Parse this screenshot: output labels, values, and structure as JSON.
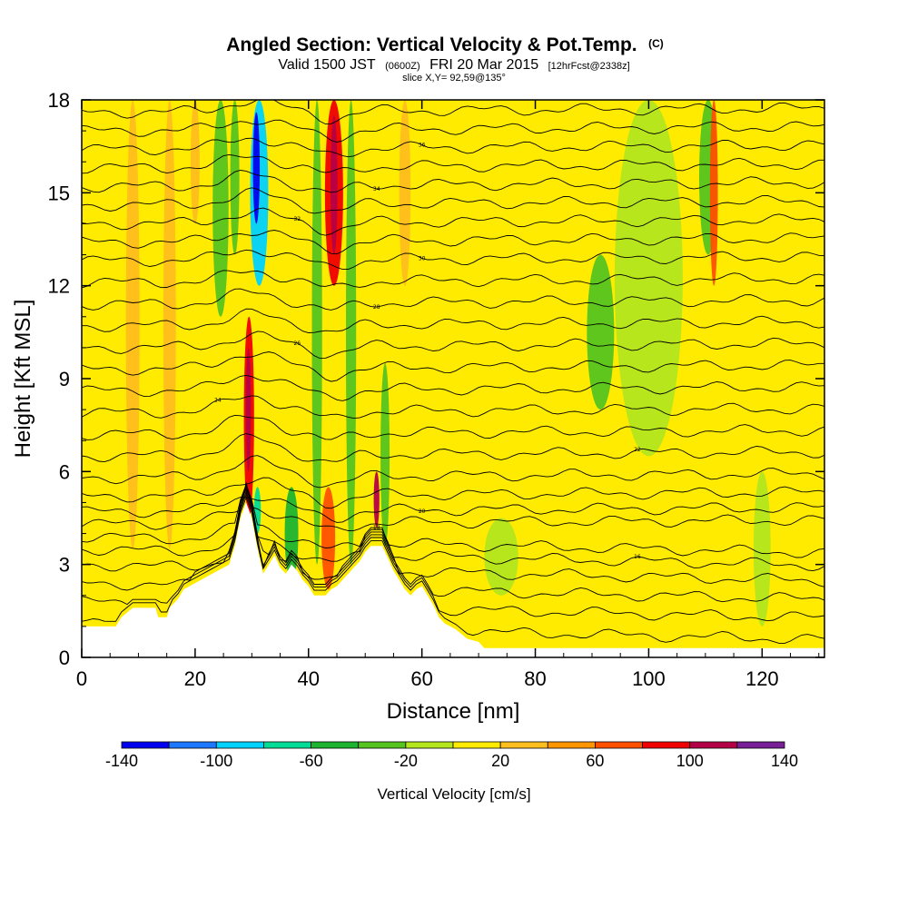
{
  "chart_data": {
    "type": "heatmap",
    "title": "Angled Section: Vertical Velocity & Pot.Temp.",
    "title_unit": "(C)",
    "subtitle_parts": [
      "Valid 1500 JST",
      "(0600Z)",
      "FRI 20 Mar 2015",
      "[12hrFcst@2338z]"
    ],
    "slice_label": "slice X,Y= 92,59@135°",
    "xlabel": "Distance [nm]",
    "ylabel": "Height [Kft MSL]",
    "xlim": [
      0,
      131
    ],
    "ylim": [
      0,
      18
    ],
    "x_ticks": [
      0,
      20,
      40,
      60,
      80,
      100,
      120
    ],
    "y_ticks": [
      0,
      3,
      6,
      9,
      12,
      15,
      18
    ],
    "colorbar": {
      "title": "Vertical Velocity [cm/s]",
      "bounds": [
        -140,
        -120,
        -100,
        -80,
        -60,
        -40,
        -20,
        0,
        20,
        40,
        60,
        80,
        100,
        120,
        140
      ],
      "tick_values": [
        -140,
        -100,
        -60,
        -20,
        20,
        60,
        100,
        140
      ],
      "colors": [
        "#0000ee",
        "#1e78ff",
        "#00d2ff",
        "#00dc96",
        "#1eb432",
        "#55c41e",
        "#b4e61e",
        "#ffeb00",
        "#ffbe1e",
        "#ff9600",
        "#ff5000",
        "#f00000",
        "#b40046",
        "#781e96"
      ]
    },
    "background_class": 0,
    "field_bands": [
      {
        "x": 9.0,
        "hw": 1.2,
        "y0": 3.5,
        "y1": 18,
        "cls": 1
      },
      {
        "x": 15.5,
        "hw": 1.1,
        "y0": 3.5,
        "y1": 18,
        "cls": 1
      },
      {
        "x": 20.0,
        "hw": 0.8,
        "y0": 14,
        "y1": 18,
        "cls": 1
      },
      {
        "x": 24.5,
        "hw": 1.4,
        "y0": 11,
        "y1": 18,
        "cls": -2
      },
      {
        "x": 27.0,
        "hw": 0.8,
        "y0": 13,
        "y1": 18,
        "cls": -2
      },
      {
        "x": 31.3,
        "hw": 1.6,
        "y0": 12,
        "y1": 18,
        "cls": -5
      },
      {
        "x": 30.8,
        "hw": 0.6,
        "y0": 14,
        "y1": 17.6,
        "cls": -7
      },
      {
        "x": 29.5,
        "hw": 0.9,
        "y0": 4.5,
        "y1": 11,
        "cls": 4
      },
      {
        "x": 29.4,
        "hw": 0.45,
        "y0": 6,
        "y1": 10,
        "cls": 5
      },
      {
        "x": 31.0,
        "hw": 0.6,
        "y0": 4.0,
        "y1": 5.5,
        "cls": -4
      },
      {
        "x": 44.5,
        "hw": 1.6,
        "y0": 12,
        "y1": 18,
        "cls": 4
      },
      {
        "x": 44.5,
        "hw": 0.6,
        "y0": 13,
        "y1": 17.5,
        "cls": 5
      },
      {
        "x": 43.5,
        "hw": 1.2,
        "y0": 2.2,
        "y1": 5.5,
        "cls": 3
      },
      {
        "x": 41.5,
        "hw": 0.9,
        "y0": 3,
        "y1": 18,
        "cls": -2
      },
      {
        "x": 47.5,
        "hw": 0.9,
        "y0": 3,
        "y1": 18,
        "cls": -2
      },
      {
        "x": 52.0,
        "hw": 0.5,
        "y0": 4.2,
        "y1": 6.0,
        "cls": 5
      },
      {
        "x": 53.5,
        "hw": 0.8,
        "y0": 3.6,
        "y1": 9.5,
        "cls": -2
      },
      {
        "x": 57.0,
        "hw": 1.0,
        "y0": 12,
        "y1": 18,
        "cls": 1
      },
      {
        "x": 37.0,
        "hw": 1.2,
        "y0": 2.5,
        "y1": 5.5,
        "cls": -3
      },
      {
        "x": 91.5,
        "hw": 2.4,
        "y0": 8,
        "y1": 13,
        "cls": -2
      },
      {
        "x": 110.5,
        "hw": 1.6,
        "y0": 13,
        "y1": 18,
        "cls": -2
      },
      {
        "x": 111.5,
        "hw": 0.7,
        "y0": 12,
        "y1": 18,
        "cls": 3
      },
      {
        "x": 120.0,
        "hw": 1.5,
        "y0": 1,
        "y1": 6,
        "cls": -1
      },
      {
        "x": 100.0,
        "hw": 6.0,
        "y0": 6.5,
        "y1": 18,
        "cls": -1
      },
      {
        "x": 74.0,
        "hw": 3.0,
        "y0": 2,
        "y1": 4.5,
        "cls": -1
      }
    ],
    "potential_temperature_contours": [
      {
        "y_left": 1.1,
        "label": ""
      },
      {
        "y_left": 1.8,
        "label": ""
      },
      {
        "y_left": 2.4,
        "label": ""
      },
      {
        "y_left": 3.0,
        "label": ""
      },
      {
        "y_left": 3.5,
        "label": "16"
      },
      {
        "y_left": 3.9,
        "label": "18"
      },
      {
        "y_left": 4.3,
        "label": ""
      },
      {
        "y_left": 4.7,
        "label": "20"
      },
      {
        "y_left": 5.2,
        "label": ""
      },
      {
        "y_left": 5.8,
        "label": ""
      },
      {
        "y_left": 6.5,
        "label": "22"
      },
      {
        "y_left": 7.2,
        "label": ""
      },
      {
        "y_left": 7.9,
        "label": "24"
      },
      {
        "y_left": 8.6,
        "label": ""
      },
      {
        "y_left": 9.3,
        "label": ""
      },
      {
        "y_left": 10.0,
        "label": "26"
      },
      {
        "y_left": 10.7,
        "label": ""
      },
      {
        "y_left": 11.4,
        "label": "28"
      },
      {
        "y_left": 12.1,
        "label": ""
      },
      {
        "y_left": 12.8,
        "label": "30"
      },
      {
        "y_left": 13.4,
        "label": ""
      },
      {
        "y_left": 14.0,
        "label": "32"
      },
      {
        "y_left": 14.6,
        "label": ""
      },
      {
        "y_left": 15.2,
        "label": "34"
      },
      {
        "y_left": 15.8,
        "label": ""
      },
      {
        "y_left": 16.4,
        "label": "36"
      },
      {
        "y_left": 17.0,
        "label": ""
      },
      {
        "y_left": 17.6,
        "label": ""
      }
    ],
    "terrain_heights_kft": [
      [
        0,
        1.0
      ],
      [
        6,
        1.0
      ],
      [
        7,
        1.3
      ],
      [
        9,
        1.6
      ],
      [
        13,
        1.6
      ],
      [
        13.5,
        1.3
      ],
      [
        15,
        1.3
      ],
      [
        15.5,
        1.6
      ],
      [
        17,
        1.9
      ],
      [
        18,
        2.2
      ],
      [
        21,
        2.5
      ],
      [
        24,
        2.8
      ],
      [
        26,
        3.0
      ],
      [
        27,
        3.6
      ],
      [
        28,
        4.5
      ],
      [
        29,
        5.0
      ],
      [
        30,
        4.5
      ],
      [
        31,
        3.5
      ],
      [
        32,
        2.7
      ],
      [
        33,
        3.0
      ],
      [
        34,
        3.3
      ],
      [
        35,
        2.9
      ],
      [
        36,
        2.7
      ],
      [
        37,
        3.0
      ],
      [
        38,
        2.8
      ],
      [
        39,
        2.5
      ],
      [
        40,
        2.3
      ],
      [
        41,
        2.0
      ],
      [
        43,
        2.0
      ],
      [
        44,
        2.2
      ],
      [
        45,
        2.3
      ],
      [
        46,
        2.5
      ],
      [
        47,
        2.7
      ],
      [
        48,
        2.9
      ],
      [
        49,
        3.1
      ],
      [
        50,
        3.4
      ],
      [
        51,
        3.6
      ],
      [
        53,
        3.6
      ],
      [
        54,
        3.2
      ],
      [
        55,
        2.8
      ],
      [
        56,
        2.5
      ],
      [
        57,
        2.2
      ],
      [
        58,
        2.0
      ],
      [
        59,
        2.2
      ],
      [
        60,
        2.3
      ],
      [
        61,
        2.0
      ],
      [
        62,
        1.7
      ],
      [
        63,
        1.3
      ],
      [
        64,
        1.1
      ],
      [
        66,
        0.9
      ],
      [
        68,
        0.6
      ],
      [
        70,
        0.5
      ],
      [
        71,
        0.3
      ],
      [
        131,
        0.3
      ]
    ]
  }
}
